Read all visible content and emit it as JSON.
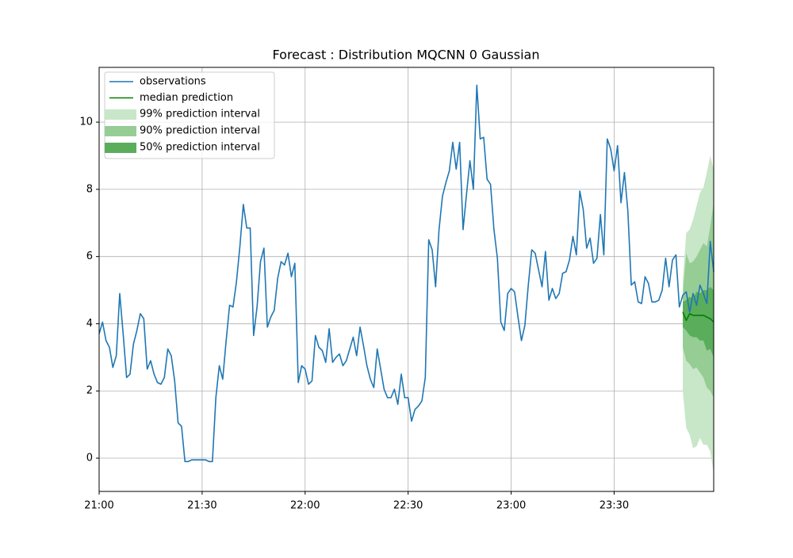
{
  "chart_data": {
    "type": "line",
    "title": "Forecast : Distribution MQCNN 0 Gaussian",
    "xlim": [
      0,
      179
    ],
    "xticks": [
      {
        "value": 0,
        "label": "21:00"
      },
      {
        "value": 30,
        "label": "21:30"
      },
      {
        "value": 60,
        "label": "22:00"
      },
      {
        "value": 90,
        "label": "22:30"
      },
      {
        "value": 120,
        "label": "23:00"
      },
      {
        "value": 150,
        "label": "23:30"
      }
    ],
    "ylim": [
      -0.99,
      11.63
    ],
    "yticks": [
      0,
      2,
      4,
      6,
      8,
      10
    ],
    "grid": true,
    "legend": "upper left",
    "intervals": [
      {
        "name": "99% prediction interval",
        "color": "#c8e6c8",
        "x": [
          170,
          171,
          172,
          173,
          174,
          175,
          176,
          177,
          178,
          179
        ],
        "lower": [
          2.0,
          0.9,
          0.7,
          0.3,
          0.35,
          0.6,
          0.4,
          0.4,
          0.2,
          -0.45
        ],
        "upper": [
          5.3,
          6.7,
          6.8,
          7.1,
          7.5,
          7.9,
          8.05,
          8.5,
          9.0,
          8.6
        ]
      },
      {
        "name": "90% prediction interval",
        "color": "#95cd95",
        "x": [
          170,
          171,
          172,
          173,
          174,
          175,
          176,
          177,
          178,
          179
        ],
        "lower": [
          3.3,
          2.9,
          2.8,
          2.65,
          2.7,
          2.55,
          2.4,
          2.1,
          2.0,
          1.8
        ],
        "upper": [
          4.9,
          6.1,
          5.8,
          5.85,
          6.0,
          6.2,
          6.4,
          6.3,
          6.9,
          7.6
        ]
      },
      {
        "name": "50% prediction interval",
        "color": "#5aad5a",
        "x": [
          170,
          171,
          172,
          173,
          174,
          175,
          176,
          177,
          178,
          179
        ],
        "lower": [
          3.9,
          3.8,
          3.65,
          3.6,
          3.6,
          3.5,
          3.5,
          3.2,
          3.25,
          3.0
        ],
        "upper": [
          4.65,
          4.7,
          4.8,
          4.75,
          4.95,
          4.9,
          5.0,
          5.0,
          5.1,
          5.0
        ]
      }
    ],
    "series": [
      {
        "name": "observations",
        "color": "#1f77b4",
        "x": [
          0,
          1,
          2,
          3,
          4,
          5,
          6,
          7,
          8,
          9,
          10,
          11,
          12,
          13,
          14,
          15,
          16,
          17,
          18,
          19,
          20,
          21,
          22,
          23,
          24,
          25,
          26,
          27,
          28,
          29,
          30,
          31,
          32,
          33,
          34,
          35,
          36,
          37,
          38,
          39,
          40,
          41,
          42,
          43,
          44,
          45,
          46,
          47,
          48,
          49,
          50,
          51,
          52,
          53,
          54,
          55,
          56,
          57,
          58,
          59,
          60,
          61,
          62,
          63,
          64,
          65,
          66,
          67,
          68,
          69,
          70,
          71,
          72,
          73,
          74,
          75,
          76,
          77,
          78,
          79,
          80,
          81,
          82,
          83,
          84,
          85,
          86,
          87,
          88,
          89,
          90,
          91,
          92,
          93,
          94,
          95,
          96,
          97,
          98,
          99,
          100,
          101,
          102,
          103,
          104,
          105,
          106,
          107,
          108,
          109,
          110,
          111,
          112,
          113,
          114,
          115,
          116,
          117,
          118,
          119,
          120,
          121,
          122,
          123,
          124,
          125,
          126,
          127,
          128,
          129,
          130,
          131,
          132,
          133,
          134,
          135,
          136,
          137,
          138,
          139,
          140,
          141,
          142,
          143,
          144,
          145,
          146,
          147,
          148,
          149,
          150,
          151,
          152,
          153,
          154,
          155,
          156,
          157,
          158,
          159,
          160,
          161,
          162,
          163,
          164,
          165,
          166,
          167,
          168,
          169,
          170,
          171,
          172,
          173,
          174,
          175,
          176,
          177,
          178,
          179
        ],
        "values": [
          3.7,
          4.05,
          3.5,
          3.3,
          2.7,
          3.05,
          4.9,
          3.7,
          2.4,
          2.5,
          3.4,
          3.8,
          4.3,
          4.15,
          2.65,
          2.9,
          2.5,
          2.25,
          2.2,
          2.4,
          3.25,
          3.05,
          2.3,
          1.05,
          0.95,
          -0.1,
          -0.1,
          -0.05,
          -0.05,
          -0.05,
          -0.05,
          -0.05,
          -0.1,
          -0.1,
          1.8,
          2.75,
          2.35,
          3.5,
          4.55,
          4.5,
          5.25,
          6.3,
          7.55,
          6.85,
          6.85,
          3.65,
          4.5,
          5.85,
          6.25,
          3.9,
          4.2,
          4.4,
          5.35,
          5.85,
          5.75,
          6.1,
          5.4,
          5.8,
          2.25,
          2.75,
          2.65,
          2.2,
          2.3,
          3.65,
          3.3,
          3.2,
          2.85,
          3.85,
          2.85,
          3.0,
          3.1,
          2.75,
          2.9,
          3.25,
          3.6,
          3.05,
          3.9,
          3.35,
          2.75,
          2.35,
          2.1,
          3.25,
          2.65,
          2.05,
          1.8,
          1.8,
          2.05,
          1.6,
          2.5,
          1.8,
          1.8,
          1.1,
          1.45,
          1.55,
          1.7,
          2.4,
          6.5,
          6.2,
          5.1,
          6.8,
          7.8,
          8.2,
          8.55,
          9.4,
          8.6,
          9.4,
          6.8,
          7.85,
          8.85,
          8.0,
          11.1,
          9.5,
          9.55,
          8.3,
          8.15,
          6.8,
          5.95,
          4.05,
          3.8,
          4.9,
          5.05,
          4.95,
          4.2,
          3.5,
          3.95,
          5.15,
          6.2,
          6.1,
          5.6,
          5.1,
          6.15,
          4.7,
          5.05,
          4.75,
          4.9,
          5.5,
          5.55,
          5.9,
          6.6,
          6.05,
          7.95,
          7.4,
          6.25,
          6.55,
          5.8,
          5.95,
          7.25,
          6.05,
          9.5,
          9.2,
          8.55,
          9.3,
          7.6,
          8.5,
          7.35,
          5.15,
          5.25,
          4.65,
          4.6,
          5.4,
          5.2,
          4.65,
          4.65,
          4.7,
          5.0,
          5.95,
          5.1,
          5.9,
          6.05,
          4.5,
          4.85,
          4.95,
          4.35,
          4.9,
          4.55,
          5.15,
          4.9,
          4.6,
          6.45,
          5.55
        ]
      },
      {
        "name": "median prediction",
        "color": "#008000",
        "x": [
          170,
          171,
          172,
          173,
          174,
          175,
          176,
          177,
          178,
          179
        ],
        "values": [
          4.35,
          4.1,
          4.3,
          4.25,
          4.25,
          4.25,
          4.25,
          4.2,
          4.15,
          4.05
        ]
      }
    ]
  }
}
